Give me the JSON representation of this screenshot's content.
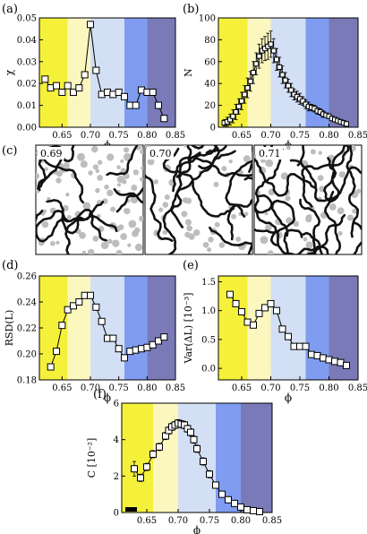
{
  "band_colors": [
    "#f5f13a",
    "#fbf7bf",
    "#d3dff5",
    "#7f9cf0",
    "#7a7ab8"
  ],
  "band_edges": [
    0.61,
    0.66,
    0.7,
    0.76,
    0.8,
    0.85
  ],
  "snapshot_labels": [
    "0.69",
    "0.70",
    "0.71"
  ],
  "chart_data": [
    {
      "id": "a",
      "panel_label": "(a)",
      "type": "line",
      "xlabel": "ϕ",
      "ylabel": "χ",
      "xlim": [
        0.61,
        0.85
      ],
      "ylim": [
        0,
        0.05
      ],
      "xticks": [
        "0.65",
        "0.70",
        "0.75",
        "0.80",
        "0.85"
      ],
      "yticks": [
        "0.00",
        "0.01",
        "0.02",
        "0.03",
        "0.04",
        "0.05"
      ],
      "x": [
        0.62,
        0.63,
        0.64,
        0.65,
        0.66,
        0.67,
        0.68,
        0.69,
        0.7,
        0.71,
        0.72,
        0.73,
        0.74,
        0.75,
        0.76,
        0.77,
        0.78,
        0.79,
        0.8,
        0.81,
        0.82,
        0.83
      ],
      "y": [
        0.022,
        0.018,
        0.019,
        0.016,
        0.019,
        0.016,
        0.018,
        0.024,
        0.047,
        0.026,
        0.015,
        0.016,
        0.015,
        0.016,
        0.014,
        0.01,
        0.01,
        0.017,
        0.016,
        0.016,
        0.01,
        0.004
      ]
    },
    {
      "id": "b",
      "panel_label": "(b)",
      "type": "line",
      "xlabel": "ϕ",
      "ylabel": "N",
      "xlim": [
        0.61,
        0.85
      ],
      "ylim": [
        0,
        100
      ],
      "xticks": [
        "0.65",
        "0.70",
        "0.75",
        "0.80",
        "0.85"
      ],
      "yticks": [
        "0",
        "20",
        "40",
        "60",
        "80",
        "100"
      ],
      "x": [
        0.62,
        0.625,
        0.63,
        0.635,
        0.64,
        0.645,
        0.65,
        0.655,
        0.66,
        0.665,
        0.67,
        0.675,
        0.68,
        0.685,
        0.69,
        0.695,
        0.7,
        0.705,
        0.71,
        0.715,
        0.72,
        0.725,
        0.73,
        0.735,
        0.74,
        0.745,
        0.75,
        0.755,
        0.76,
        0.765,
        0.77,
        0.775,
        0.78,
        0.785,
        0.79,
        0.795,
        0.8,
        0.805,
        0.81,
        0.815,
        0.82,
        0.825,
        0.83
      ],
      "y": [
        4,
        5,
        7,
        10,
        14,
        19,
        24,
        30,
        36,
        42,
        50,
        58,
        65,
        70,
        72,
        74,
        76,
        70,
        62,
        55,
        48,
        43,
        38,
        34,
        30,
        28,
        26,
        24,
        21,
        19,
        18,
        17,
        15,
        14,
        12,
        11,
        10,
        8,
        7,
        6,
        5,
        4,
        3
      ],
      "err": [
        3,
        4,
        5,
        6,
        7,
        7,
        8,
        8,
        9,
        9,
        10,
        10,
        11,
        11,
        11,
        12,
        12,
        11,
        10,
        9,
        8,
        7,
        6,
        6,
        5,
        5,
        5,
        4,
        4,
        4,
        3,
        3,
        3,
        3,
        3,
        2,
        2,
        2,
        2,
        2,
        2,
        1,
        1
      ]
    },
    {
      "id": "d",
      "panel_label": "(d)",
      "type": "line",
      "xlabel": "ϕ",
      "ylabel": "RSD(L)",
      "xlim": [
        0.61,
        0.85
      ],
      "ylim": [
        0.18,
        0.26
      ],
      "xticks": [
        "0.65",
        "0.70",
        "0.75",
        "0.80",
        "0.85"
      ],
      "yticks": [
        "0.18",
        "0.20",
        "0.22",
        "0.24",
        "0.26"
      ],
      "x": [
        0.63,
        0.64,
        0.65,
        0.66,
        0.67,
        0.68,
        0.69,
        0.7,
        0.71,
        0.72,
        0.73,
        0.74,
        0.75,
        0.76,
        0.77,
        0.78,
        0.79,
        0.8,
        0.81,
        0.82,
        0.83
      ],
      "y": [
        0.19,
        0.202,
        0.222,
        0.234,
        0.237,
        0.24,
        0.245,
        0.245,
        0.236,
        0.225,
        0.212,
        0.212,
        0.204,
        0.197,
        0.202,
        0.203,
        0.204,
        0.205,
        0.207,
        0.21,
        0.213
      ]
    },
    {
      "id": "e",
      "panel_label": "(e)",
      "type": "line",
      "xlabel": "ϕ",
      "ylabel": "Var(ΔL) [10⁻³]",
      "xlim": [
        0.61,
        0.85
      ],
      "ylim": [
        -0.2,
        1.6
      ],
      "xticks": [
        "0.65",
        "0.70",
        "0.75",
        "0.80",
        "0.85"
      ],
      "yticks": [
        "0.0",
        "0.5",
        "1.0",
        "1.5"
      ],
      "x": [
        0.63,
        0.64,
        0.65,
        0.66,
        0.67,
        0.68,
        0.69,
        0.7,
        0.71,
        0.72,
        0.73,
        0.74,
        0.75,
        0.76,
        0.77,
        0.78,
        0.79,
        0.8,
        0.81,
        0.82,
        0.83
      ],
      "y": [
        1.28,
        1.12,
        0.98,
        0.8,
        0.75,
        0.95,
        1.05,
        1.12,
        1.0,
        0.68,
        0.55,
        0.38,
        0.38,
        0.38,
        0.24,
        0.22,
        0.18,
        0.15,
        0.12,
        0.1,
        0.05
      ]
    },
    {
      "id": "f",
      "panel_label": "(f)",
      "type": "line",
      "xlabel": "ϕ",
      "ylabel": "C [10⁻²]",
      "xlim": [
        0.61,
        0.85
      ],
      "ylim": [
        0,
        6
      ],
      "xticks": [
        "0.65",
        "0.70",
        "0.75",
        "0.80",
        "0.85"
      ],
      "yticks": [
        "0",
        "2",
        "4",
        "6"
      ],
      "x": [
        0.63,
        0.64,
        0.65,
        0.66,
        0.67,
        0.68,
        0.685,
        0.69,
        0.695,
        0.7,
        0.705,
        0.71,
        0.715,
        0.72,
        0.725,
        0.73,
        0.74,
        0.75,
        0.76,
        0.77,
        0.78,
        0.79,
        0.8,
        0.81,
        0.82,
        0.83
      ],
      "y": [
        2.4,
        1.9,
        2.5,
        3.2,
        3.6,
        4.2,
        4.5,
        4.7,
        4.8,
        4.9,
        4.85,
        4.8,
        4.6,
        4.4,
        4.0,
        3.5,
        2.8,
        2.1,
        1.5,
        1.0,
        0.7,
        0.5,
        0.3,
        0.15,
        0.1,
        0.05
      ],
      "err": [
        0.4,
        0.2,
        0.2,
        0.2,
        0.2,
        0.2,
        0.2,
        0.2,
        0.2,
        0.2,
        0.2,
        0.2,
        0.2,
        0.2,
        0.2,
        0.2,
        0.2,
        0.2,
        0.15,
        0.15,
        0.1,
        0.1,
        0.1,
        0.05,
        0.05,
        0.05
      ],
      "xbase": [
        0.62,
        0.625,
        0.63
      ]
    }
  ]
}
